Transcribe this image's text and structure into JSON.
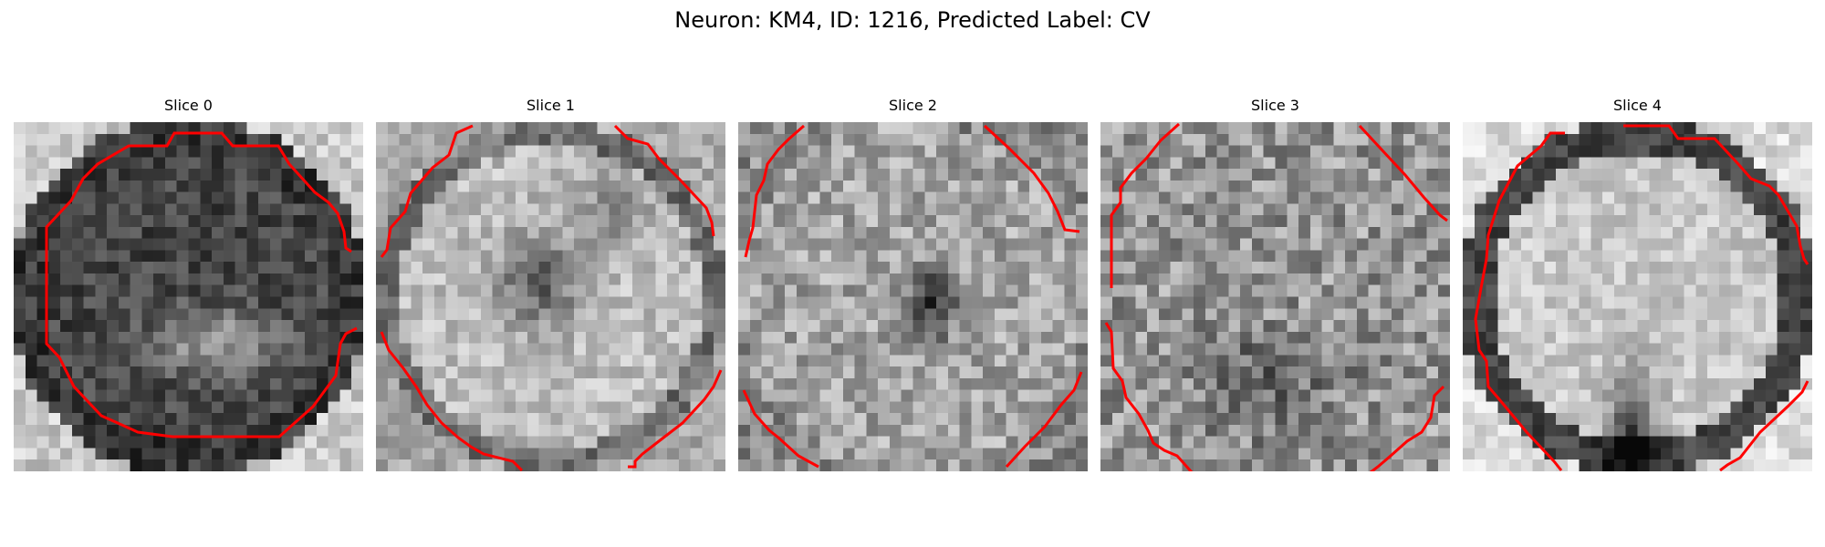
{
  "title": "Neuron: KM4, ID: 1216, Predicted Label: CV",
  "contour_color": "#ff0000",
  "panels": [
    {
      "label": "Slice 0",
      "tone": "dark-center-bright-rim",
      "contour": "full-outline"
    },
    {
      "label": "Slice 1",
      "tone": "bright-body-dark-center-notch",
      "contour": "corner-arcs"
    },
    {
      "label": "Slice 2",
      "tone": "medium-gray-noisy",
      "contour": "corner-arcs"
    },
    {
      "label": "Slice 3",
      "tone": "noisy-gray",
      "contour": "corner-arcs"
    },
    {
      "label": "Slice 4",
      "tone": "bright-body-dark-bottom-notch",
      "contour": "near-full-outline"
    }
  ]
}
